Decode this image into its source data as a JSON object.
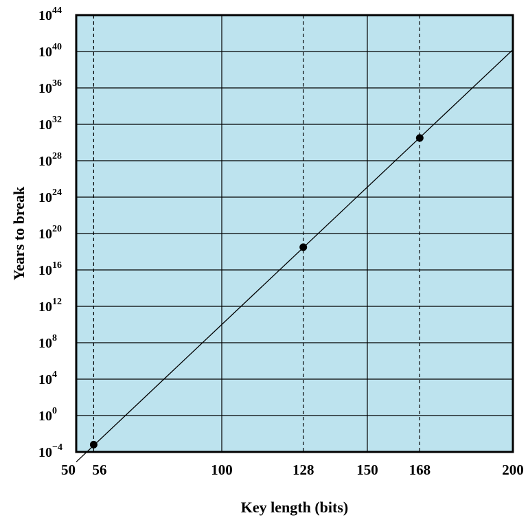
{
  "chart_data": {
    "type": "line",
    "title": "",
    "xlabel": "Key length (bits)",
    "ylabel": "Years to break",
    "xlim": [
      50,
      200
    ],
    "ylim_log10": [
      -4,
      44
    ],
    "log_y": true,
    "grid": true,
    "x_ticks": [
      {
        "value": 50,
        "label": "50"
      },
      {
        "value": 56,
        "label": "56"
      },
      {
        "value": 100,
        "label": "100"
      },
      {
        "value": 128,
        "label": "128"
      },
      {
        "value": 150,
        "label": "150"
      },
      {
        "value": 168,
        "label": "168"
      },
      {
        "value": 200,
        "label": "200"
      }
    ],
    "y_ticks": [
      {
        "exp": -4,
        "base": "10",
        "sup": "−4"
      },
      {
        "exp": 0,
        "base": "10",
        "sup": "0"
      },
      {
        "exp": 4,
        "base": "10",
        "sup": "4"
      },
      {
        "exp": 8,
        "base": "10",
        "sup": "8"
      },
      {
        "exp": 12,
        "base": "10",
        "sup": "12"
      },
      {
        "exp": 16,
        "base": "10",
        "sup": "16"
      },
      {
        "exp": 20,
        "base": "10",
        "sup": "20"
      },
      {
        "exp": 24,
        "base": "10",
        "sup": "24"
      },
      {
        "exp": 28,
        "base": "10",
        "sup": "28"
      },
      {
        "exp": 32,
        "base": "10",
        "sup": "32"
      },
      {
        "exp": 36,
        "base": "10",
        "sup": "36"
      },
      {
        "exp": 40,
        "base": "10",
        "sup": "40"
      },
      {
        "exp": 44,
        "base": "10",
        "sup": "44"
      }
    ],
    "solid_vertical_gridlines": [
      100,
      150
    ],
    "dashed_vertical_lines": [
      56,
      128,
      168
    ],
    "line": {
      "x": [
        50,
        200
      ],
      "log10_y": [
        -5.1,
        40.2
      ]
    },
    "points": [
      {
        "x": 56,
        "log10_y": -3.2
      },
      {
        "x": 128,
        "log10_y": 18.5
      },
      {
        "x": 168,
        "log10_y": 30.5
      }
    ],
    "colors": {
      "plot_background": "#bde3ee",
      "frame": "#000000",
      "gridline": "#000000",
      "line": "#000000",
      "point": "#000000"
    }
  }
}
